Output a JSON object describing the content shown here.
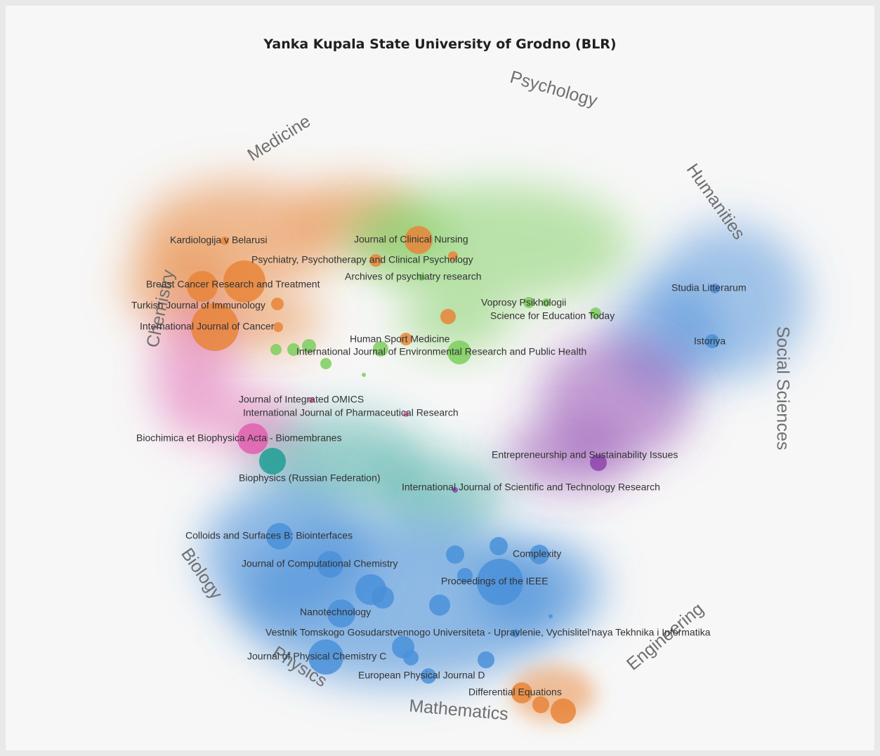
{
  "chart_data": {
    "type": "scatter",
    "title": "Yanka Kupala State University of Grodno (BLR)",
    "colors": {
      "Medicine": "#e8853a",
      "Psychology": "#7cce5e",
      "Humanities": "#4a90d9",
      "Social Sciences": "#8e44ad",
      "Chemistry": "#e05fae",
      "Biology": "#1f9e94",
      "Physics": "#4a90d9",
      "Engineering": "#e8853a",
      "Mathematics": "#e8853a"
    },
    "fields": [
      "Psychology",
      "Medicine",
      "Humanities",
      "Chemistry",
      "Social Sciences",
      "Biology",
      "Physics",
      "Engineering",
      "Mathematics"
    ],
    "journals": [
      {
        "name": "Journal of Clinical Nursing",
        "field": "Medicine"
      },
      {
        "name": "Kardiologija v Belarusi",
        "field": "Medicine"
      },
      {
        "name": "Psychiatry, Psychotherapy and Clinical Psychology",
        "field": "Medicine"
      },
      {
        "name": "Archives of psychiatry research",
        "field": "Psychology"
      },
      {
        "name": "Breast Cancer Research and Treatment",
        "field": "Medicine"
      },
      {
        "name": "Turkish Journal of Immunology",
        "field": "Medicine"
      },
      {
        "name": "International Journal of Cancer",
        "field": "Medicine"
      },
      {
        "name": "Studia Litterarum",
        "field": "Humanities"
      },
      {
        "name": "Voprosy Psikhologii",
        "field": "Psychology"
      },
      {
        "name": "Science for Education Today",
        "field": "Psychology"
      },
      {
        "name": "Istoriya",
        "field": "Humanities"
      },
      {
        "name": "Human Sport Medicine",
        "field": "Medicine"
      },
      {
        "name": "International Journal of Environmental Research and Public Health",
        "field": "Psychology"
      },
      {
        "name": "Journal of Integrated OMICS",
        "field": "Chemistry"
      },
      {
        "name": "International Journal of Pharmaceutical Research",
        "field": "Chemistry"
      },
      {
        "name": "Biochimica et Biophysica Acta - Biomembranes",
        "field": "Chemistry"
      },
      {
        "name": "Entrepreneurship and Sustainability Issues",
        "field": "Social Sciences"
      },
      {
        "name": "Biophysics (Russian Federation)",
        "field": "Biology"
      },
      {
        "name": "International Journal of Scientific and Technology Research",
        "field": "Social Sciences"
      },
      {
        "name": "Colloids and Surfaces B: Biointerfaces",
        "field": "Physics"
      },
      {
        "name": "Complexity",
        "field": "Physics"
      },
      {
        "name": "Journal of Computational Chemistry",
        "field": "Physics"
      },
      {
        "name": "Proceedings of the IEEE",
        "field": "Physics"
      },
      {
        "name": "Nanotechnology",
        "field": "Physics"
      },
      {
        "name": "Vestnik Tomskogo Gosudarstvennogo Universiteta - Upravlenie, Vychislitel'naya Tekhnika i Informatika",
        "field": "Physics"
      },
      {
        "name": "Journal of Physical Chemistry C",
        "field": "Physics"
      },
      {
        "name": "European Physical Journal D",
        "field": "Physics"
      },
      {
        "name": "Differential Equations",
        "field": "Mathematics"
      }
    ]
  }
}
